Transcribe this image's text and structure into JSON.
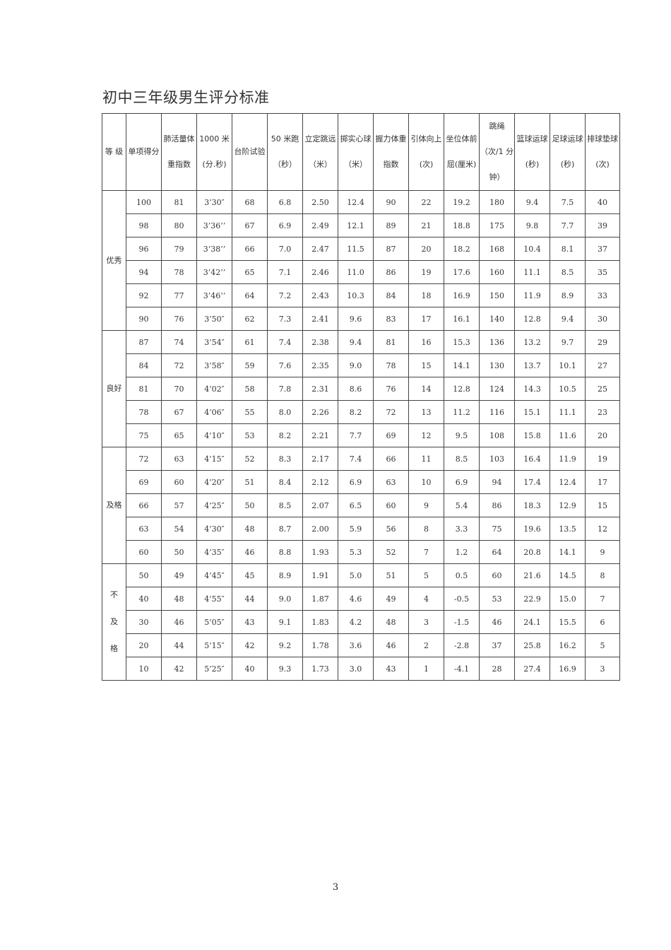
{
  "title": "初中三年级男生评分标准",
  "headers": [
    [
      "等  级"
    ],
    [
      "单项得分"
    ],
    [
      "肺活量体",
      "重指数"
    ],
    [
      "1000 米",
      "(分.秒)"
    ],
    [
      "台阶试验"
    ],
    [
      "50 米跑",
      "（秒）"
    ],
    [
      "立定跳远",
      "（米）"
    ],
    [
      "掷实心球",
      "（米）"
    ],
    [
      "握力体重",
      "指数"
    ],
    [
      "引体向上",
      "(次)"
    ],
    [
      "坐位体前",
      "屈(厘米)"
    ],
    [
      "跳绳",
      "（次/1 分",
      "钟）"
    ],
    [
      "篮球运球",
      "(秒)"
    ],
    [
      "足球运球",
      "(秒)"
    ],
    [
      "排球垫球",
      "(次)"
    ]
  ],
  "groups": [
    {
      "grade": [
        "优秀"
      ],
      "rows": [
        [
          "100",
          "81",
          "3’30″",
          "68",
          "6.8",
          "2.50",
          "12.4",
          "90",
          "22",
          "19.2",
          "180",
          "9.4",
          "7.5",
          "40"
        ],
        [
          "98",
          "80",
          "3’36’’",
          "67",
          "6.9",
          "2.49",
          "12.1",
          "89",
          "21",
          "18.8",
          "175",
          "9.8",
          "7.7",
          "39"
        ],
        [
          "96",
          "79",
          "3’38’’",
          "66",
          "7.0",
          "2.47",
          "11.5",
          "87",
          "20",
          "18.2",
          "168",
          "10.4",
          "8.1",
          "37"
        ],
        [
          "94",
          "78",
          "3’42’’",
          "65",
          "7.1",
          "2.46",
          "11.0",
          "86",
          "19",
          "17.6",
          "160",
          "11.1",
          "8.5",
          "35"
        ],
        [
          "92",
          "77",
          "3’46’’",
          "64",
          "7.2",
          "2.43",
          "10.3",
          "84",
          "18",
          "16.9",
          "150",
          "11.9",
          "8.9",
          "33"
        ],
        [
          "90",
          "76",
          "3’50″",
          "62",
          "7.3",
          "2.41",
          "9.6",
          "83",
          "17",
          "16.1",
          "140",
          "12.8",
          "9.4",
          "30"
        ]
      ]
    },
    {
      "grade": [
        "良好"
      ],
      "rows": [
        [
          "87",
          "74",
          "3’54″",
          "61",
          "7.4",
          "2.38",
          "9.4",
          "81",
          "16",
          "15.3",
          "136",
          "13.2",
          "9.7",
          "29"
        ],
        [
          "84",
          "72",
          "3’58″",
          "59",
          "7.6",
          "2.35",
          "9.0",
          "78",
          "15",
          "14.1",
          "130",
          "13.7",
          "10.1",
          "27"
        ],
        [
          "81",
          "70",
          "4’02″",
          "58",
          "7.8",
          "2.31",
          "8.6",
          "76",
          "14",
          "12.8",
          "124",
          "14.3",
          "10.5",
          "25"
        ],
        [
          "78",
          "67",
          "4’06″",
          "55",
          "8.0",
          "2.26",
          "8.2",
          "72",
          "13",
          "11.2",
          "116",
          "15.1",
          "11.1",
          "23"
        ],
        [
          "75",
          "65",
          "4’10″",
          "53",
          "8.2",
          "2.21",
          "7.7",
          "69",
          "12",
          "9.5",
          "108",
          "15.8",
          "11.6",
          "20"
        ]
      ]
    },
    {
      "grade": [
        "及格"
      ],
      "rows": [
        [
          "72",
          "63",
          "4’15″",
          "52",
          "8.3",
          "2.17",
          "7.4",
          "66",
          "11",
          "8.5",
          "103",
          "16.4",
          "11.9",
          "19"
        ],
        [
          "69",
          "60",
          "4’20″",
          "51",
          "8.4",
          "2.12",
          "6.9",
          "63",
          "10",
          "6.9",
          "94",
          "17.4",
          "12.4",
          "17"
        ],
        [
          "66",
          "57",
          "4’25″",
          "50",
          "8.5",
          "2.07",
          "6.5",
          "60",
          "9",
          "5.4",
          "86",
          "18.3",
          "12.9",
          "15"
        ],
        [
          "63",
          "54",
          "4’30″",
          "48",
          "8.7",
          "2.00",
          "5.9",
          "56",
          "8",
          "3.3",
          "75",
          "19.6",
          "13.5",
          "12"
        ],
        [
          "60",
          "50",
          "4’35″",
          "46",
          "8.8",
          "1.93",
          "5.3",
          "52",
          "7",
          "1.2",
          "64",
          "20.8",
          "14.1",
          "9"
        ]
      ]
    },
    {
      "grade": [
        "不",
        "及",
        "格"
      ],
      "rows": [
        [
          "50",
          "49",
          "4’45″",
          "45",
          "8.9",
          "1.91",
          "5.0",
          "51",
          "5",
          "0.5",
          "60",
          "21.6",
          "14.5",
          "8"
        ],
        [
          "40",
          "48",
          "4’55″",
          "44",
          "9.0",
          "1.87",
          "4.6",
          "49",
          "4",
          "-0.5",
          "53",
          "22.9",
          "15.0",
          "7"
        ],
        [
          "30",
          "46",
          "5’05″",
          "43",
          "9.1",
          "1.83",
          "4.2",
          "48",
          "3",
          "-1.5",
          "46",
          "24.1",
          "15.5",
          "6"
        ],
        [
          "20",
          "44",
          "5’15″",
          "42",
          "9.2",
          "1.78",
          "3.6",
          "46",
          "2",
          "-2.8",
          "37",
          "25.8",
          "16.2",
          "5"
        ],
        [
          "10",
          "42",
          "5’25″",
          "40",
          "9.3",
          "1.73",
          "3.0",
          "43",
          "1",
          "-4.1",
          "28",
          "27.4",
          "16.9",
          "3"
        ]
      ]
    }
  ],
  "page_number": "3"
}
